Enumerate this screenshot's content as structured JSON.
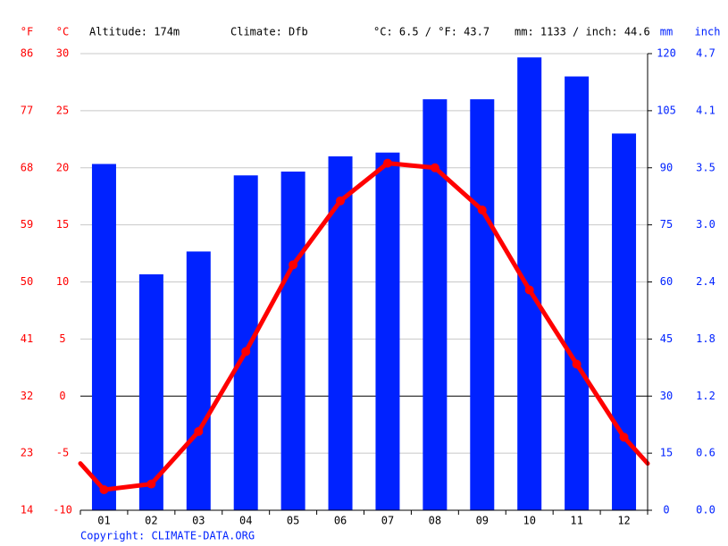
{
  "chart_data": {
    "type": "bar",
    "header": [
      "Altitude: 174m",
      "Climate: Dfb",
      "°C: 6.5 / °F: 43.7",
      "mm: 1133 / inch: 44.6"
    ],
    "ylabel": "°C",
    "flabel": "°F",
    "y2label": "mm",
    "inchlabel": "inch",
    "copyright": "Copyright: CLIMATE-DATA.ORG",
    "categories": [
      "01",
      "02",
      "03",
      "04",
      "05",
      "06",
      "07",
      "08",
      "09",
      "10",
      "11",
      "12"
    ],
    "series": [
      {
        "type": "bar",
        "axis": "y2",
        "color": "#0022ff",
        "values": [
          91,
          62,
          68,
          88,
          89,
          93,
          94,
          108,
          108,
          119,
          114,
          99
        ]
      },
      {
        "type": "line",
        "axis": "y",
        "color": "#ff0000",
        "values": [
          -8.2,
          -7.7,
          -3.1,
          3.9,
          11.5,
          17.1,
          20.4,
          20.0,
          16.3,
          9.3,
          2.8,
          -3.6
        ]
      }
    ],
    "ylim": [
      -10,
      30
    ],
    "yticks": [
      -10,
      -5,
      0,
      5,
      10,
      15,
      20,
      25,
      30
    ],
    "flim": [
      14,
      86
    ],
    "fticks": [
      14,
      23,
      32,
      41,
      50,
      59,
      68,
      77,
      86
    ],
    "y2lim": [
      0,
      120
    ],
    "y2ticks": [
      0,
      15,
      30,
      45,
      60,
      75,
      90,
      105,
      120
    ],
    "inchlim": [
      0,
      4.72
    ],
    "inchticks": [
      {
        "value": 0,
        "label": "0.0"
      },
      {
        "value": 0.59,
        "label": "0.6"
      },
      {
        "value": 1.18,
        "label": "1.2"
      },
      {
        "value": 1.77,
        "label": "1.8"
      },
      {
        "value": 2.36,
        "label": "2.4"
      },
      {
        "value": 2.95,
        "label": "3.0"
      },
      {
        "value": 3.54,
        "label": "3.5"
      },
      {
        "value": 4.13,
        "label": "4.1"
      },
      {
        "value": 4.72,
        "label": "4.7"
      }
    ],
    "grid": true
  }
}
